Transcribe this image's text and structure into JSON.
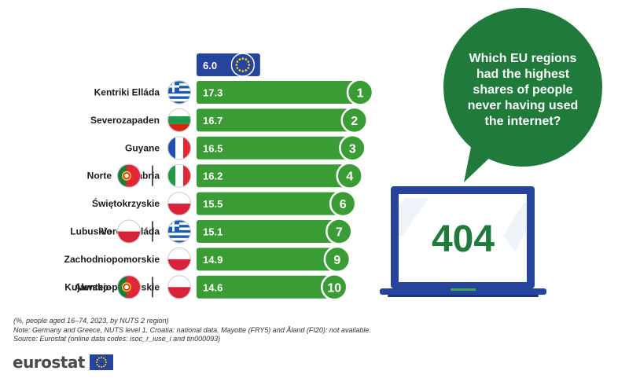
{
  "chart_data": {
    "type": "bar",
    "orientation": "horizontal",
    "reference": {
      "value": 6.0,
      "value_label": "6.0",
      "flag_icon": "eu-flag-icon"
    },
    "rows": [
      {
        "rank": "1",
        "labels": [
          "Kentriki Elláda"
        ],
        "flags": [
          "greece-flag-icon"
        ],
        "value": 17.3,
        "value_label": "17.3"
      },
      {
        "rank": "2",
        "labels": [
          "Severozapaden"
        ],
        "flags": [
          "bulgaria-flag-icon"
        ],
        "value": 16.7,
        "value_label": "16.7"
      },
      {
        "rank": "3",
        "labels": [
          "Guyane"
        ],
        "flags": [
          "france-flag-icon"
        ],
        "value": 16.5,
        "value_label": "16.5"
      },
      {
        "rank": "4",
        "labels": [
          "Calabria",
          "Norte"
        ],
        "flags": [
          "italy-flag-icon",
          "portugal-flag-icon"
        ],
        "value": 16.2,
        "value_label": "16.2"
      },
      {
        "rank": "6",
        "labels": [
          "Świętokrzyskie"
        ],
        "flags": [
          "poland-flag-icon"
        ],
        "value": 15.5,
        "value_label": "15.5"
      },
      {
        "rank": "7",
        "labels": [
          "Voreia Elláda",
          "Lubuskie"
        ],
        "flags": [
          "greece-flag-icon",
          "poland-flag-icon"
        ],
        "value": 15.1,
        "value_label": "15.1"
      },
      {
        "rank": "9",
        "labels": [
          "Zachodniopomorskie"
        ],
        "flags": [
          "poland-flag-icon"
        ],
        "value": 14.9,
        "value_label": "14.9"
      },
      {
        "rank": "10",
        "labels": [
          "Kujawsko-pomorskie",
          "Alentejo"
        ],
        "flags": [
          "poland-flag-icon",
          "portugal-flag-icon"
        ],
        "value": 14.6,
        "value_label": "14.6"
      }
    ]
  },
  "bubble": {
    "lines": [
      "Which EU regions",
      "had the highest",
      "shares of people",
      "never having used",
      "the internet?"
    ]
  },
  "laptop": {
    "screen_text": "404"
  },
  "notes": [
    "(%, people aged 16–74, 2023, by NUTS 2 region)",
    "Note: Germany and Greece, NUTS level 1. Croatia: national data. Mayotte (FRY5) and Åland (FI20): not available.",
    "Source: Eurostat (online data codes: isoc_r_iuse_i and tin000093)"
  ],
  "logo": {
    "text": "eurostat"
  },
  "colors": {
    "bar_green": "#3a9c35",
    "eu_blue": "#27449c",
    "bubble_green": "#1f7a3c",
    "laptop_blue": "#27449c"
  }
}
